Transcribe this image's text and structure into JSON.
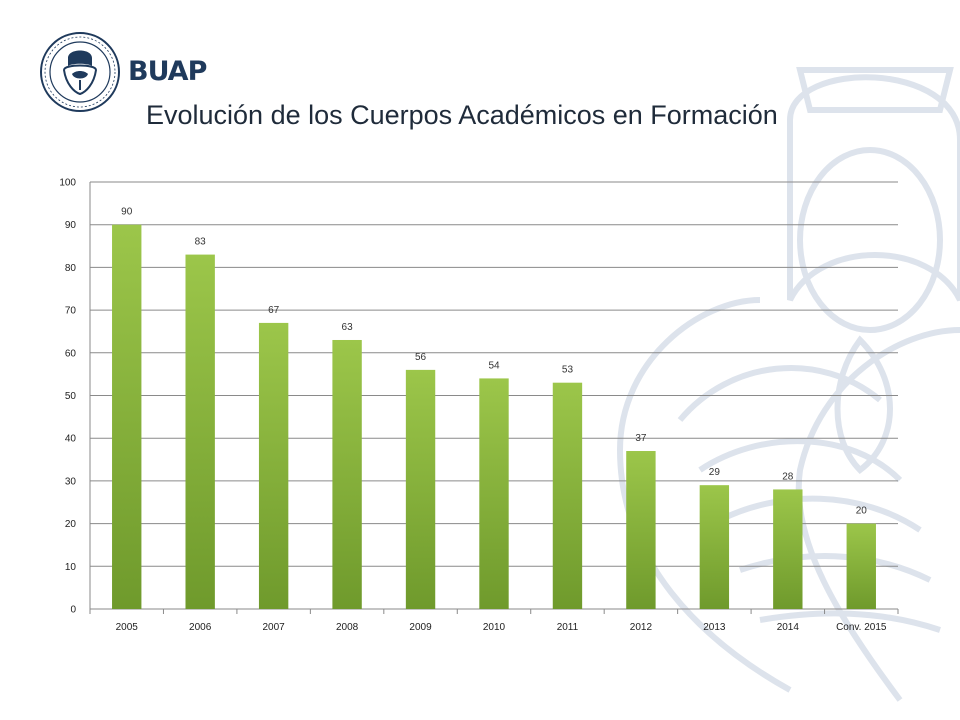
{
  "header": {
    "logo_text": "BUAP",
    "title": "Evolución de los Cuerpos Académicos en Formación"
  },
  "colors": {
    "bar_top": "#9cc64a",
    "bar_bottom": "#6f9a2c",
    "grid": "#8a8a8a",
    "brand": "#1f3a5c",
    "watermark": "#dde3ec"
  },
  "chart_data": {
    "type": "bar",
    "categories": [
      "2005",
      "2006",
      "2007",
      "2008",
      "2009",
      "2010",
      "2011",
      "2012",
      "2013",
      "2014",
      "Conv. 2015"
    ],
    "values": [
      90,
      83,
      67,
      63,
      56,
      54,
      53,
      37,
      29,
      28,
      20
    ],
    "data_labels": [
      "90",
      "83",
      "67",
      "63",
      "56",
      "54",
      "53",
      "37",
      "29",
      "28",
      "20"
    ],
    "ylim": [
      0,
      100
    ],
    "yticks": [
      "0",
      "10",
      "20",
      "30",
      "40",
      "50",
      "60",
      "70",
      "80",
      "90",
      "100"
    ],
    "title": "",
    "xlabel": "",
    "ylabel": "",
    "grid": true,
    "legend": "none"
  }
}
